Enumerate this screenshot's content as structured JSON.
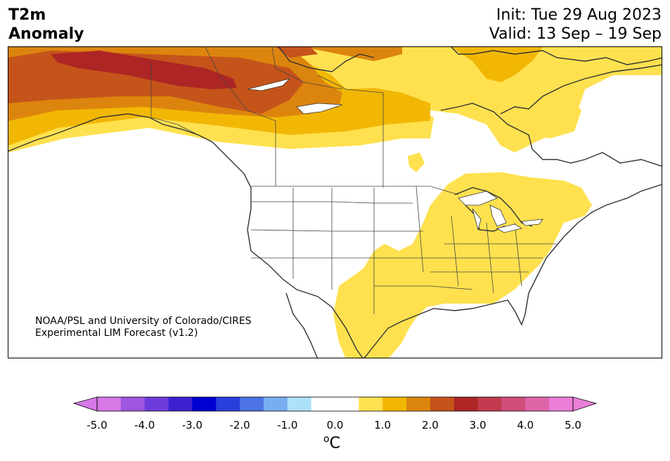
{
  "title": {
    "left_line1": "T2m",
    "left_line2": "Anomaly",
    "init": "Init: Tue 29 Aug 2023",
    "valid": "Valid: 13 Sep – 19 Sep"
  },
  "credit": {
    "line1": "NOAA/PSL and University of Colorado/CIRES",
    "line2": "Experimental LIM Forecast (v1.2)"
  },
  "colorbar": {
    "ticks": [
      "-5.0",
      "-4.0",
      "-3.0",
      "-2.0",
      "-1.0",
      "0.0",
      "1.0",
      "2.0",
      "3.0",
      "4.0",
      "5.0"
    ],
    "unit_sup": "o",
    "unit": "C",
    "colors": [
      "#d678e6",
      "#9f56e0",
      "#6d3ddb",
      "#3c21d1",
      "#0000d0",
      "#2a3edb",
      "#4b73e3",
      "#78aef0",
      "#ade0fb",
      "#ffffff",
      "#ffffff",
      "#ffe14f",
      "#f2b705",
      "#dc850e",
      "#c5541a",
      "#ad2525",
      "#c23a4e",
      "#d04e7a",
      "#de64a8",
      "#ea7ed8"
    ],
    "under_color": "#d678e6",
    "over_color": "#ea7ed8"
  },
  "anomaly_colors": {
    "0.5-1.0": "#ffe14f",
    "1.0-1.5": "#f2b705",
    "1.5-2.0": "#dc850e",
    "2.0-2.5": "#c5541a",
    "2.5-3.0": "#ad2525"
  }
}
